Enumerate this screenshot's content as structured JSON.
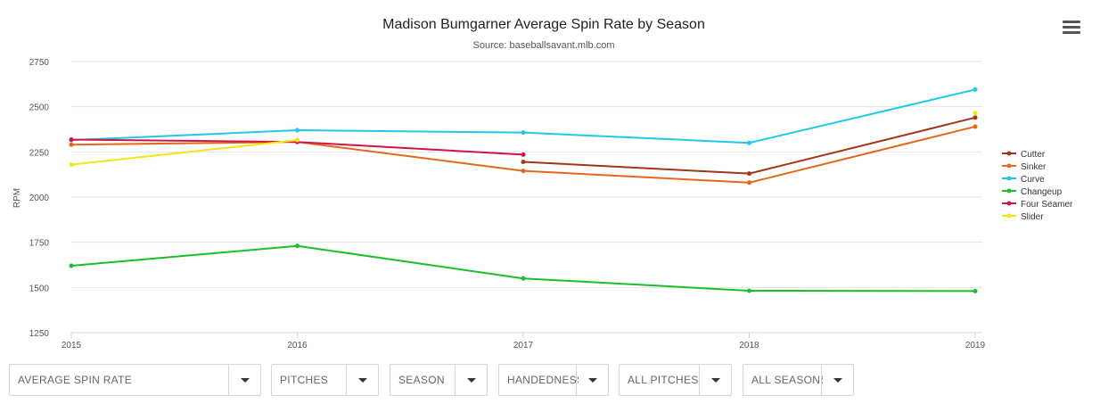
{
  "chart_data": {
    "type": "line",
    "title": "Madison Bumgarner Average Spin Rate by Season",
    "subtitle": "Source: baseballsavant.mlb.com",
    "xlabel": "",
    "ylabel": "RPM",
    "ylim": [
      1250,
      2750
    ],
    "yticks": [
      1250,
      1500,
      1750,
      2000,
      2250,
      2500,
      2750
    ],
    "categories": [
      "2015",
      "2016",
      "2017",
      "2018",
      "2019"
    ],
    "grid": true,
    "legend_position": "right",
    "series": [
      {
        "name": "Cutter",
        "color": "#a0361c",
        "values": [
          null,
          null,
          2195,
          2130,
          2440
        ]
      },
      {
        "name": "Sinker",
        "color": "#e8661a",
        "values": [
          2290,
          2305,
          2145,
          2080,
          2390
        ]
      },
      {
        "name": "Curve",
        "color": "#1fc8ea",
        "values": [
          2315,
          2370,
          2357,
          2300,
          2595
        ]
      },
      {
        "name": "Changeup",
        "color": "#1bbf2a",
        "values": [
          1620,
          1730,
          1550,
          1482,
          1480
        ]
      },
      {
        "name": "Four Seamer",
        "color": "#d11448",
        "values": [
          2318,
          2305,
          2235,
          null,
          null
        ]
      },
      {
        "name": "Slider",
        "color": "#f2e615",
        "values": [
          2180,
          2315,
          null,
          null,
          2465
        ]
      }
    ]
  },
  "controls": {
    "metric": "AVERAGE SPIN RATE",
    "pitches": "PITCHES",
    "season": "SEASON",
    "handedness": "HANDEDNESS",
    "all_pitches": "ALL PITCHES",
    "all_seasons": "ALL SEASONS"
  },
  "menu_icon": "hamburger-menu-icon"
}
